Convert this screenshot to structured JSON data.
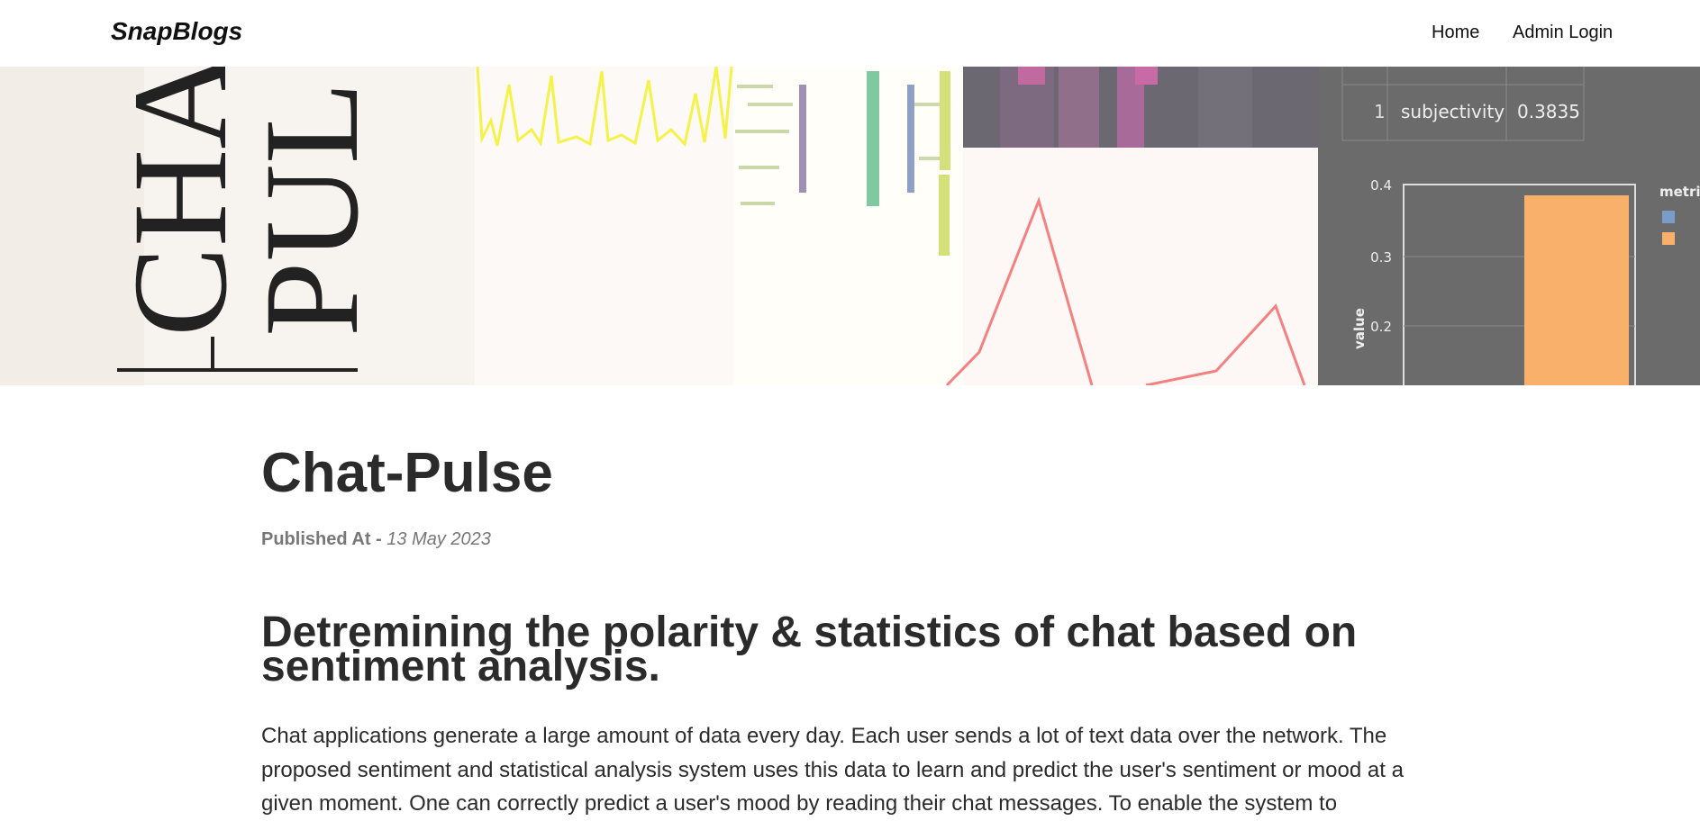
{
  "navbar": {
    "brand": "SnapBlogs",
    "links": [
      "Home",
      "Admin Login"
    ]
  },
  "banner": {
    "letters": [
      "CHA",
      "PUL"
    ],
    "table_index": "1",
    "table_metric": "subjectivity",
    "table_value": "0.3835",
    "chart_ticks": [
      "0.4",
      "0.3",
      "0.2"
    ],
    "chart_axis": "value",
    "legend_title": "metric"
  },
  "post": {
    "title": "Chat-Pulse",
    "published_label": "Published At -",
    "published_date": "13 May 2023",
    "heading": "Detremining the polarity & statistics of chat based on sentiment analysis.",
    "paragraph": "Chat applications generate a large amount of data every day. Each user sends a lot of text data over the network. The proposed sentiment and statistical analysis system uses this data to learn and predict the user's sentiment or mood at a given moment. One can correctly predict a user's mood by reading their chat messages. To enable the system to"
  }
}
